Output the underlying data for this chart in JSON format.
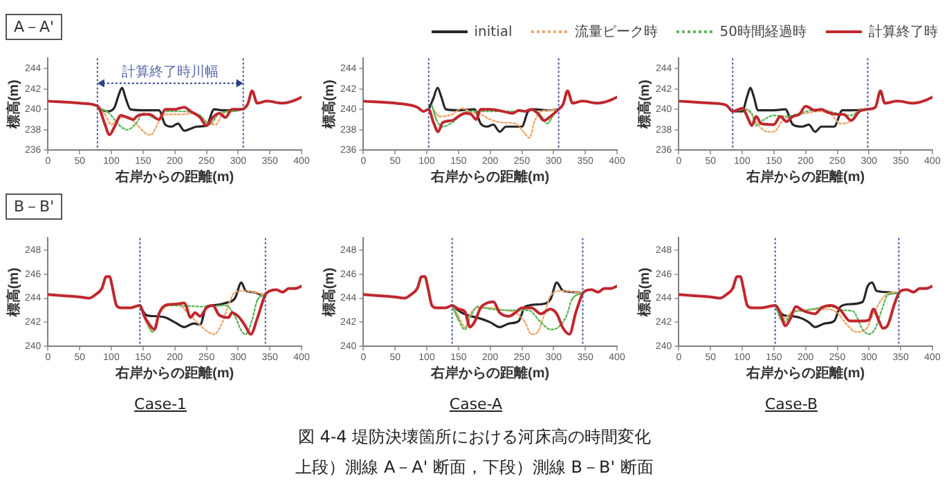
{
  "chart_data": [
    {
      "type": "line",
      "xlabel": "右岸からの距離(m)",
      "ylabel": "標高(m)",
      "xlim": [
        0,
        400
      ],
      "xticks": [
        0,
        50,
        100,
        150,
        200,
        250,
        300,
        350,
        400
      ],
      "ylim": [
        236,
        245
      ],
      "yticks": [
        236,
        238,
        240,
        242,
        244
      ],
      "grid": false,
      "marker": "none",
      "legend": "top right",
      "annotations": [
        "A－A'",
        "計算終了時川幅"
      ],
      "ref_lines": [
        {
          "axis": "x",
          "value": 78,
          "color": "#44549c",
          "line_style": "dotted"
        },
        {
          "axis": "x",
          "value": 308,
          "color": "#44549c",
          "line_style": "dotted"
        }
      ],
      "series": [
        {
          "name": "initial",
          "color": "#262626",
          "x": [
            85,
            95,
            105,
            112,
            117,
            122,
            130,
            150,
            175,
            185,
            195,
            205,
            215,
            225,
            235,
            250,
            262,
            275,
            300
          ],
          "values": [
            239.9,
            239.8,
            240.2,
            241.5,
            242.1,
            241.2,
            240.0,
            239.9,
            239.9,
            238.5,
            238.3,
            238.6,
            237.9,
            238.1,
            238.3,
            238.4,
            240.0,
            239.9,
            239.9
          ]
        },
        {
          "name": "流量ピーク時",
          "color": "#f2a66a",
          "line_style": "dotted",
          "x": [
            78,
            90,
            100,
            110,
            125,
            140,
            155,
            162,
            175,
            185,
            210,
            230,
            245,
            255,
            265,
            275,
            290,
            308
          ],
          "values": [
            240.2,
            239.5,
            238.5,
            239.0,
            239.3,
            238.5,
            237.6,
            237.5,
            238.8,
            239.5,
            239.5,
            239.6,
            239.0,
            238.6,
            238.5,
            239.5,
            239.9,
            240.0
          ]
        },
        {
          "name": "50時間経過時",
          "color": "#5cb85c",
          "line_style": "dotted",
          "x": [
            78,
            95,
            105,
            115,
            125,
            140,
            150,
            175,
            185,
            210,
            240,
            255,
            270,
            290,
            308
          ],
          "values": [
            240.2,
            239.7,
            239.0,
            238.3,
            238.0,
            238.7,
            239.6,
            239.0,
            239.8,
            239.8,
            239.4,
            238.5,
            239.6,
            239.8,
            240.0
          ]
        },
        {
          "name": "計算終了時",
          "color": "#c0272d",
          "x": [
            0,
            50,
            75,
            80,
            90,
            97,
            105,
            115,
            125,
            135,
            140,
            150,
            160,
            175,
            185,
            200,
            215,
            225,
            240,
            250,
            260,
            270,
            280,
            290,
            305,
            315,
            322,
            330,
            345,
            370,
            390,
            400
          ],
          "values": [
            240.8,
            240.6,
            240.4,
            240.2,
            238.5,
            237.5,
            238.3,
            239.4,
            239.2,
            239.0,
            239.3,
            239.5,
            239.5,
            239.0,
            240.0,
            240.0,
            240.2,
            239.8,
            239.2,
            238.4,
            239.2,
            239.6,
            239.2,
            240.0,
            240.0,
            240.5,
            241.8,
            240.6,
            240.8,
            240.6,
            240.9,
            241.2
          ]
        }
      ]
    },
    {
      "type": "line",
      "xlabel": "右岸からの距離(m)",
      "ylabel": "標高(m)",
      "xlim": [
        0,
        400
      ],
      "xticks": [
        0,
        50,
        100,
        150,
        200,
        250,
        300,
        350,
        400
      ],
      "ylim": [
        236,
        245
      ],
      "yticks": [
        236,
        238,
        240,
        242,
        244
      ],
      "grid": false,
      "marker": "none",
      "ref_lines": [
        {
          "axis": "x",
          "value": 103,
          "color": "#44549c",
          "line_style": "dotted"
        },
        {
          "axis": "x",
          "value": 308,
          "color": "#44549c",
          "line_style": "dotted"
        }
      ],
      "series": [
        {
          "color": "#262626",
          "x": [
            103,
            110,
            117,
            123,
            130,
            150,
            175,
            185,
            195,
            205,
            215,
            225,
            250,
            260,
            270,
            290,
            308
          ],
          "values": [
            240.0,
            241.0,
            242.1,
            241.2,
            240.0,
            239.9,
            240.0,
            238.6,
            238.3,
            238.5,
            237.8,
            238.3,
            238.3,
            239.8,
            240.0,
            239.9,
            240.0
          ]
        },
        {
          "color": "#f2a66a",
          "line_style": "dotted",
          "x": [
            110,
            120,
            140,
            155,
            170,
            185,
            200,
            220,
            240,
            255,
            262,
            270,
            280,
            295,
            308
          ],
          "values": [
            240.0,
            239.3,
            239.5,
            240.1,
            239.7,
            239.5,
            239.0,
            238.7,
            238.6,
            237.6,
            237.2,
            238.8,
            239.8,
            239.9,
            240.0
          ]
        },
        {
          "color": "#5cb85c",
          "line_style": "dotted",
          "x": [
            108,
            115,
            125,
            140,
            155,
            170,
            185,
            220,
            250,
            265,
            280,
            290,
            300
          ],
          "values": [
            240.4,
            239.0,
            238.3,
            238.7,
            239.5,
            239.8,
            239.8,
            239.8,
            239.8,
            240.0,
            239.4,
            238.6,
            239.5
          ]
        },
        {
          "color": "#c0272d",
          "x": [
            0,
            50,
            75,
            85,
            95,
            103,
            110,
            118,
            125,
            140,
            150,
            160,
            170,
            178,
            185,
            200,
            220,
            235,
            245,
            255,
            265,
            275,
            285,
            295,
            308,
            315,
            322,
            330,
            345,
            370,
            390,
            400
          ],
          "values": [
            240.8,
            240.6,
            240.4,
            240.2,
            239.8,
            240.0,
            238.8,
            237.8,
            238.7,
            238.9,
            239.3,
            239.6,
            239.5,
            239.0,
            240.0,
            240.0,
            239.8,
            239.6,
            239.9,
            239.8,
            240.0,
            239.6,
            238.9,
            239.3,
            240.0,
            240.5,
            241.8,
            240.6,
            240.8,
            240.6,
            240.9,
            241.2
          ]
        }
      ]
    },
    {
      "type": "line",
      "xlabel": "右岸からの距離(m)",
      "ylabel": "標高(m)",
      "xlim": [
        0,
        400
      ],
      "xticks": [
        0,
        50,
        100,
        150,
        200,
        250,
        300,
        350,
        400
      ],
      "ylim": [
        236,
        245
      ],
      "yticks": [
        236,
        238,
        240,
        242,
        244
      ],
      "grid": false,
      "marker": "none",
      "ref_lines": [
        {
          "axis": "x",
          "value": 85,
          "color": "#44549c",
          "line_style": "dotted"
        },
        {
          "axis": "x",
          "value": 298,
          "color": "#44549c",
          "line_style": "dotted"
        }
      ],
      "series": [
        {
          "color": "#262626",
          "x": [
            85,
            100,
            108,
            113,
            118,
            125,
            150,
            168,
            180,
            195,
            205,
            215,
            225,
            245,
            258,
            270,
            298
          ],
          "values": [
            239.8,
            239.8,
            241.3,
            242.1,
            241.3,
            239.9,
            239.9,
            240.0,
            238.5,
            238.3,
            238.5,
            237.8,
            238.3,
            238.3,
            239.9,
            239.9,
            240.0
          ]
        },
        {
          "color": "#f2a66a",
          "line_style": "dotted",
          "x": [
            85,
            105,
            115,
            125,
            140,
            150,
            165,
            180,
            200,
            220,
            240,
            255,
            270,
            285,
            298
          ],
          "values": [
            239.8,
            240.0,
            239.5,
            238.5,
            237.8,
            237.8,
            239.0,
            239.4,
            239.6,
            239.8,
            239.5,
            238.6,
            238.8,
            239.9,
            240.0
          ]
        },
        {
          "color": "#5cb85c",
          "line_style": "dotted",
          "x": [
            85,
            105,
            115,
            122,
            130,
            150,
            170,
            190,
            220,
            250,
            270,
            285,
            298
          ],
          "values": [
            239.8,
            240.0,
            239.6,
            238.4,
            238.8,
            239.4,
            239.3,
            239.6,
            240.0,
            239.6,
            239.4,
            239.8,
            240.0
          ]
        },
        {
          "color": "#c0272d",
          "x": [
            0,
            50,
            75,
            85,
            95,
            100,
            110,
            115,
            122,
            130,
            150,
            160,
            170,
            180,
            190,
            200,
            215,
            225,
            235,
            250,
            260,
            272,
            285,
            298,
            310,
            318,
            325,
            345,
            370,
            390,
            400
          ],
          "values": [
            240.8,
            240.6,
            240.4,
            239.8,
            240.0,
            240.1,
            239.0,
            238.4,
            239.3,
            238.6,
            238.5,
            239.3,
            238.8,
            239.3,
            239.5,
            240.3,
            239.9,
            240.0,
            239.7,
            239.5,
            239.5,
            238.9,
            239.8,
            240.0,
            240.2,
            241.8,
            240.6,
            240.8,
            240.6,
            240.9,
            241.2
          ]
        }
      ]
    },
    {
      "type": "line",
      "title": "Case-1",
      "xlabel": "右岸からの距離(m)",
      "ylabel": "標高(m)",
      "xlim": [
        0,
        400
      ],
      "xticks": [
        0,
        50,
        100,
        150,
        200,
        250,
        300,
        350,
        400
      ],
      "ylim": [
        240,
        249
      ],
      "yticks": [
        240,
        242,
        244,
        246,
        248
      ],
      "grid": false,
      "marker": "none",
      "annotations": [
        "B－B'"
      ],
      "ref_lines": [
        {
          "axis": "x",
          "value": 145,
          "color": "#44549c",
          "line_style": "dotted"
        },
        {
          "axis": "x",
          "value": 343,
          "color": "#44549c",
          "line_style": "dotted"
        }
      ],
      "series": [
        {
          "color": "#262626",
          "x": [
            145,
            155,
            170,
            185,
            200,
            215,
            230,
            240,
            250,
            260,
            280,
            295,
            305,
            312,
            325,
            335
          ],
          "values": [
            243.4,
            242.6,
            242.5,
            242.4,
            242.0,
            241.6,
            241.9,
            241.8,
            243.3,
            243.4,
            243.6,
            244.0,
            245.3,
            244.6,
            244.5,
            244.3
          ]
        },
        {
          "color": "#f2a66a",
          "line_style": "dotted",
          "x": [
            145,
            155,
            165,
            175,
            190,
            205,
            220,
            235,
            250,
            262,
            275,
            285,
            295,
            310,
            325,
            343
          ],
          "values": [
            243.4,
            242.0,
            241.2,
            242.6,
            243.4,
            243.5,
            242.8,
            242.0,
            241.3,
            241.0,
            242.0,
            243.5,
            244.5,
            244.6,
            244.5,
            244.3
          ]
        },
        {
          "color": "#5cb85c",
          "line_style": "dotted",
          "x": [
            145,
            155,
            165,
            175,
            190,
            250,
            280,
            295,
            305,
            312,
            322,
            330,
            343
          ],
          "values": [
            243.4,
            242.2,
            241.2,
            242.8,
            243.4,
            243.3,
            243.4,
            242.5,
            241.3,
            241.0,
            242.2,
            243.8,
            244.3
          ]
        },
        {
          "color": "#c0272d",
          "x": [
            0,
            25,
            50,
            65,
            75,
            85,
            92,
            97,
            102,
            108,
            115,
            130,
            145,
            152,
            160,
            168,
            175,
            185,
            200,
            215,
            225,
            232,
            240,
            250,
            260,
            270,
            285,
            290,
            300,
            310,
            320,
            330,
            343,
            350,
            360,
            370,
            380,
            390,
            400
          ],
          "values": [
            244.3,
            244.2,
            244.1,
            244.0,
            244.3,
            244.8,
            245.8,
            245.8,
            244.8,
            243.4,
            243.2,
            243.2,
            243.4,
            242.5,
            241.8,
            241.4,
            242.7,
            243.4,
            243.5,
            243.6,
            242.4,
            242.8,
            242.5,
            243.2,
            243.4,
            242.6,
            242.4,
            242.8,
            242.5,
            241.8,
            241.0,
            242.3,
            244.3,
            244.6,
            244.7,
            244.5,
            244.8,
            244.8,
            245.0
          ]
        }
      ]
    },
    {
      "type": "line",
      "title": "Case-A",
      "xlabel": "右岸からの距離(m)",
      "ylabel": "標高(m)",
      "xlim": [
        0,
        400
      ],
      "xticks": [
        0,
        50,
        100,
        150,
        200,
        250,
        300,
        350,
        400
      ],
      "ylim": [
        240,
        249
      ],
      "yticks": [
        240,
        242,
        244,
        246,
        248
      ],
      "grid": false,
      "marker": "none",
      "annotations": [
        "図 4-4  堤防決壊箇所における河床高の時間変化",
        "上段）測線 A－A' 断面，下段）測線 B－B' 断面"
      ],
      "ref_lines": [
        {
          "axis": "x",
          "value": 140,
          "color": "#44549c",
          "line_style": "dotted"
        },
        {
          "axis": "x",
          "value": 346,
          "color": "#44549c",
          "line_style": "dotted"
        }
      ],
      "series": [
        {
          "color": "#262626",
          "x": [
            140,
            155,
            170,
            185,
            200,
            215,
            230,
            245,
            255,
            280,
            295,
            305,
            315,
            335,
            346
          ],
          "values": [
            243.4,
            242.8,
            242.5,
            242.3,
            242.0,
            241.6,
            241.9,
            242.1,
            243.3,
            243.5,
            243.9,
            245.3,
            244.6,
            244.5,
            244.4
          ]
        },
        {
          "color": "#f2a66a",
          "line_style": "dotted",
          "x": [
            140,
            150,
            160,
            170,
            180,
            200,
            220,
            240,
            255,
            265,
            275,
            285,
            295,
            310,
            335,
            346
          ],
          "values": [
            243.4,
            242.5,
            241.6,
            242.8,
            243.2,
            243.2,
            243.0,
            242.8,
            242.0,
            241.0,
            241.2,
            242.6,
            244.2,
            244.6,
            244.5,
            244.4
          ]
        },
        {
          "color": "#5cb85c",
          "line_style": "dotted",
          "x": [
            140,
            150,
            160,
            170,
            180,
            200,
            230,
            260,
            280,
            295,
            305,
            320,
            330,
            346
          ],
          "values": [
            243.4,
            242.2,
            241.4,
            242.6,
            243.3,
            243.1,
            243.0,
            243.0,
            242.0,
            241.4,
            241.5,
            242.5,
            244.0,
            244.4
          ]
        },
        {
          "color": "#c0272d",
          "x": [
            0,
            25,
            50,
            65,
            75,
            85,
            92,
            97,
            102,
            108,
            115,
            130,
            140,
            150,
            160,
            168,
            175,
            185,
            195,
            205,
            215,
            230,
            240,
            250,
            265,
            280,
            295,
            305,
            315,
            325,
            335,
            346,
            350,
            360,
            370,
            380,
            390,
            400
          ],
          "values": [
            244.3,
            244.2,
            244.1,
            244.0,
            244.3,
            244.8,
            245.8,
            245.8,
            244.8,
            243.4,
            243.2,
            243.2,
            243.4,
            243.1,
            242.9,
            241.6,
            242.0,
            243.2,
            243.6,
            243.7,
            242.8,
            242.5,
            242.8,
            243.2,
            243.2,
            242.7,
            243.1,
            242.7,
            241.5,
            241.0,
            242.8,
            244.4,
            244.6,
            244.7,
            244.5,
            244.8,
            244.8,
            245.0
          ]
        }
      ]
    },
    {
      "type": "line",
      "title": "Case-B",
      "xlabel": "右岸からの距離(m)",
      "ylabel": "標高(m)",
      "xlim": [
        0,
        400
      ],
      "xticks": [
        0,
        50,
        100,
        150,
        200,
        250,
        300,
        350,
        400
      ],
      "ylim": [
        240,
        249
      ],
      "yticks": [
        240,
        242,
        244,
        246,
        248
      ],
      "grid": false,
      "marker": "none",
      "ref_lines": [
        {
          "axis": "x",
          "value": 152,
          "color": "#44549c",
          "line_style": "dotted"
        },
        {
          "axis": "x",
          "value": 347,
          "color": "#44549c",
          "line_style": "dotted"
        }
      ],
      "series": [
        {
          "color": "#262626",
          "x": [
            152,
            165,
            180,
            195,
            205,
            215,
            230,
            245,
            255,
            270,
            290,
            298,
            305,
            312,
            330,
            347
          ],
          "values": [
            243.4,
            242.6,
            242.5,
            242.3,
            242.0,
            241.6,
            241.9,
            242.1,
            243.3,
            243.5,
            243.7,
            245.0,
            245.3,
            244.6,
            244.5,
            244.4
          ]
        },
        {
          "color": "#f2a66a",
          "line_style": "dotted",
          "x": [
            152,
            165,
            180,
            200,
            230,
            250,
            265,
            280,
            295,
            305,
            320,
            335,
            347
          ],
          "values": [
            243.4,
            242.3,
            242.9,
            243.0,
            243.1,
            242.8,
            241.8,
            241.2,
            241.4,
            242.5,
            243.9,
            244.5,
            244.4
          ]
        },
        {
          "color": "#5cb85c",
          "line_style": "dotted",
          "x": [
            152,
            165,
            180,
            200,
            240,
            260,
            275,
            290,
            300,
            310,
            320,
            330,
            347
          ],
          "values": [
            243.4,
            242.0,
            242.8,
            243.0,
            243.3,
            243.0,
            242.9,
            241.4,
            241.0,
            241.5,
            243.0,
            244.3,
            244.4
          ]
        },
        {
          "color": "#c0272d",
          "x": [
            0,
            25,
            50,
            65,
            75,
            85,
            92,
            97,
            102,
            108,
            115,
            130,
            152,
            160,
            168,
            175,
            185,
            195,
            205,
            215,
            225,
            240,
            255,
            270,
            290,
            300,
            307,
            315,
            322,
            330,
            340,
            347,
            350,
            360,
            370,
            380,
            390,
            400
          ],
          "values": [
            244.3,
            244.2,
            244.1,
            244.0,
            244.3,
            244.8,
            245.8,
            245.8,
            244.8,
            243.4,
            243.2,
            243.2,
            243.4,
            242.8,
            241.7,
            242.2,
            243.3,
            243.0,
            242.8,
            242.7,
            243.2,
            243.4,
            243.0,
            242.1,
            242.1,
            242.2,
            243.1,
            242.2,
            241.5,
            241.8,
            243.5,
            244.4,
            244.6,
            244.7,
            244.5,
            244.8,
            244.8,
            245.0
          ]
        }
      ]
    }
  ]
}
